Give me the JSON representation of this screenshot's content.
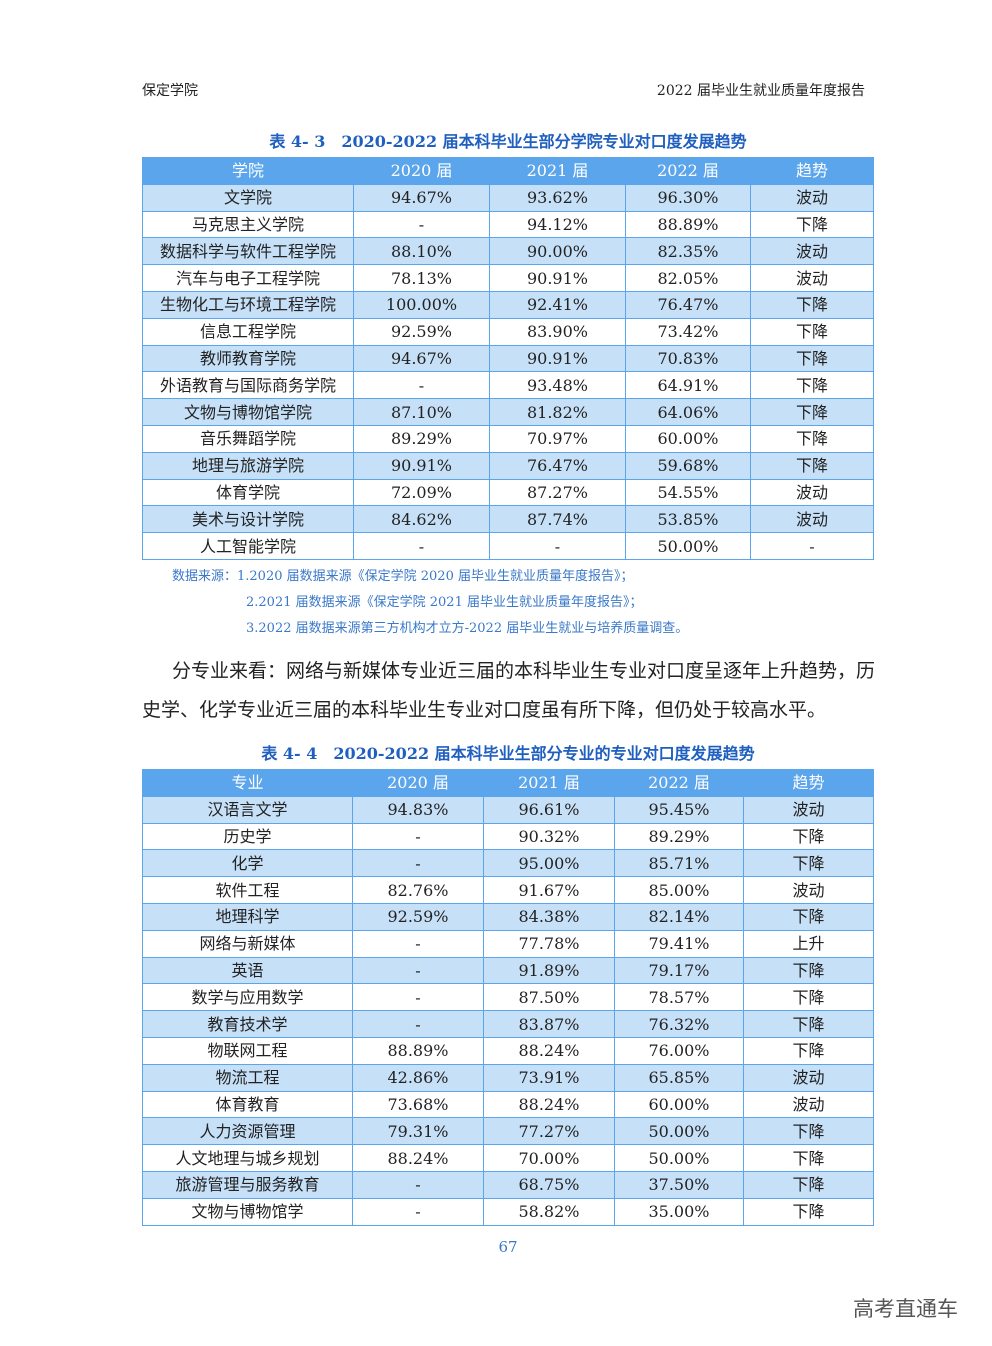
{
  "header": {
    "left": "保定学院",
    "right": "2022 届毕业生就业质量年度报告"
  },
  "table1": {
    "title": "表 4- 3　2020-2022 届本科毕业生部分学院专业对口度发展趋势",
    "columns": [
      "学院",
      "2020 届",
      "2021 届",
      "2022 届",
      "趋势"
    ],
    "rows": [
      [
        "文学院",
        "94.67%",
        "93.62%",
        "96.30%",
        "波动"
      ],
      [
        "马克思主义学院",
        "-",
        "94.12%",
        "88.89%",
        "下降"
      ],
      [
        "数据科学与软件工程学院",
        "88.10%",
        "90.00%",
        "82.35%",
        "波动"
      ],
      [
        "汽车与电子工程学院",
        "78.13%",
        "90.91%",
        "82.05%",
        "波动"
      ],
      [
        "生物化工与环境工程学院",
        "100.00%",
        "92.41%",
        "76.47%",
        "下降"
      ],
      [
        "信息工程学院",
        "92.59%",
        "83.90%",
        "73.42%",
        "下降"
      ],
      [
        "教师教育学院",
        "94.67%",
        "90.91%",
        "70.83%",
        "下降"
      ],
      [
        "外语教育与国际商务学院",
        "-",
        "93.48%",
        "64.91%",
        "下降"
      ],
      [
        "文物与博物馆学院",
        "87.10%",
        "81.82%",
        "64.06%",
        "下降"
      ],
      [
        "音乐舞蹈学院",
        "89.29%",
        "70.97%",
        "60.00%",
        "下降"
      ],
      [
        "地理与旅游学院",
        "90.91%",
        "76.47%",
        "59.68%",
        "下降"
      ],
      [
        "体育学院",
        "72.09%",
        "87.27%",
        "54.55%",
        "波动"
      ],
      [
        "美术与设计学院",
        "84.62%",
        "87.74%",
        "53.85%",
        "波动"
      ],
      [
        "人工智能学院",
        "-",
        "-",
        "50.00%",
        "-"
      ]
    ]
  },
  "notes": [
    "数据来源：1.2020 届数据来源《保定学院 2020 届毕业生就业质量年度报告》；",
    "2.2021 届数据来源《保定学院 2021 届毕业生就业质量年度报告》；",
    "3.2022 届数据来源第三方机构才立方-2022 届毕业生就业与培养质量调查。"
  ],
  "paragraph": "分专业来看：网络与新媒体专业近三届的本科毕业生专业对口度呈逐年上升趋势，历史学、化学专业近三届的本科毕业生专业对口度虽有所下降，但仍处于较高水平。",
  "table2": {
    "title": "表 4- 4　2020-2022 届本科毕业生部分专业的专业对口度发展趋势",
    "columns": [
      "专业",
      "2020 届",
      "2021 届",
      "2022 届",
      "趋势"
    ],
    "rows": [
      [
        "汉语言文学",
        "94.83%",
        "96.61%",
        "95.45%",
        "波动"
      ],
      [
        "历史学",
        "-",
        "90.32%",
        "89.29%",
        "下降"
      ],
      [
        "化学",
        "-",
        "95.00%",
        "85.71%",
        "下降"
      ],
      [
        "软件工程",
        "82.76%",
        "91.67%",
        "85.00%",
        "波动"
      ],
      [
        "地理科学",
        "92.59%",
        "84.38%",
        "82.14%",
        "下降"
      ],
      [
        "网络与新媒体",
        "-",
        "77.78%",
        "79.41%",
        "上升"
      ],
      [
        "英语",
        "-",
        "91.89%",
        "79.17%",
        "下降"
      ],
      [
        "数学与应用数学",
        "-",
        "87.50%",
        "78.57%",
        "下降"
      ],
      [
        "教育技术学",
        "-",
        "83.87%",
        "76.32%",
        "下降"
      ],
      [
        "物联网工程",
        "88.89%",
        "88.24%",
        "76.00%",
        "下降"
      ],
      [
        "物流工程",
        "42.86%",
        "73.91%",
        "65.85%",
        "波动"
      ],
      [
        "体育教育",
        "73.68%",
        "88.24%",
        "60.00%",
        "波动"
      ],
      [
        "人力资源管理",
        "79.31%",
        "77.27%",
        "50.00%",
        "下降"
      ],
      [
        "人文地理与城乡规划",
        "88.24%",
        "70.00%",
        "50.00%",
        "下降"
      ],
      [
        "旅游管理与服务教育",
        "-",
        "68.75%",
        "37.50%",
        "下降"
      ],
      [
        "文物与博物馆学",
        "-",
        "58.82%",
        "35.00%",
        "下降"
      ]
    ]
  },
  "page_number": "67",
  "watermark": "高考直通车",
  "colors": {
    "header_bg": "#5aa5ec",
    "stripe": "#c6e0f8",
    "title": "#1f5fbf"
  }
}
